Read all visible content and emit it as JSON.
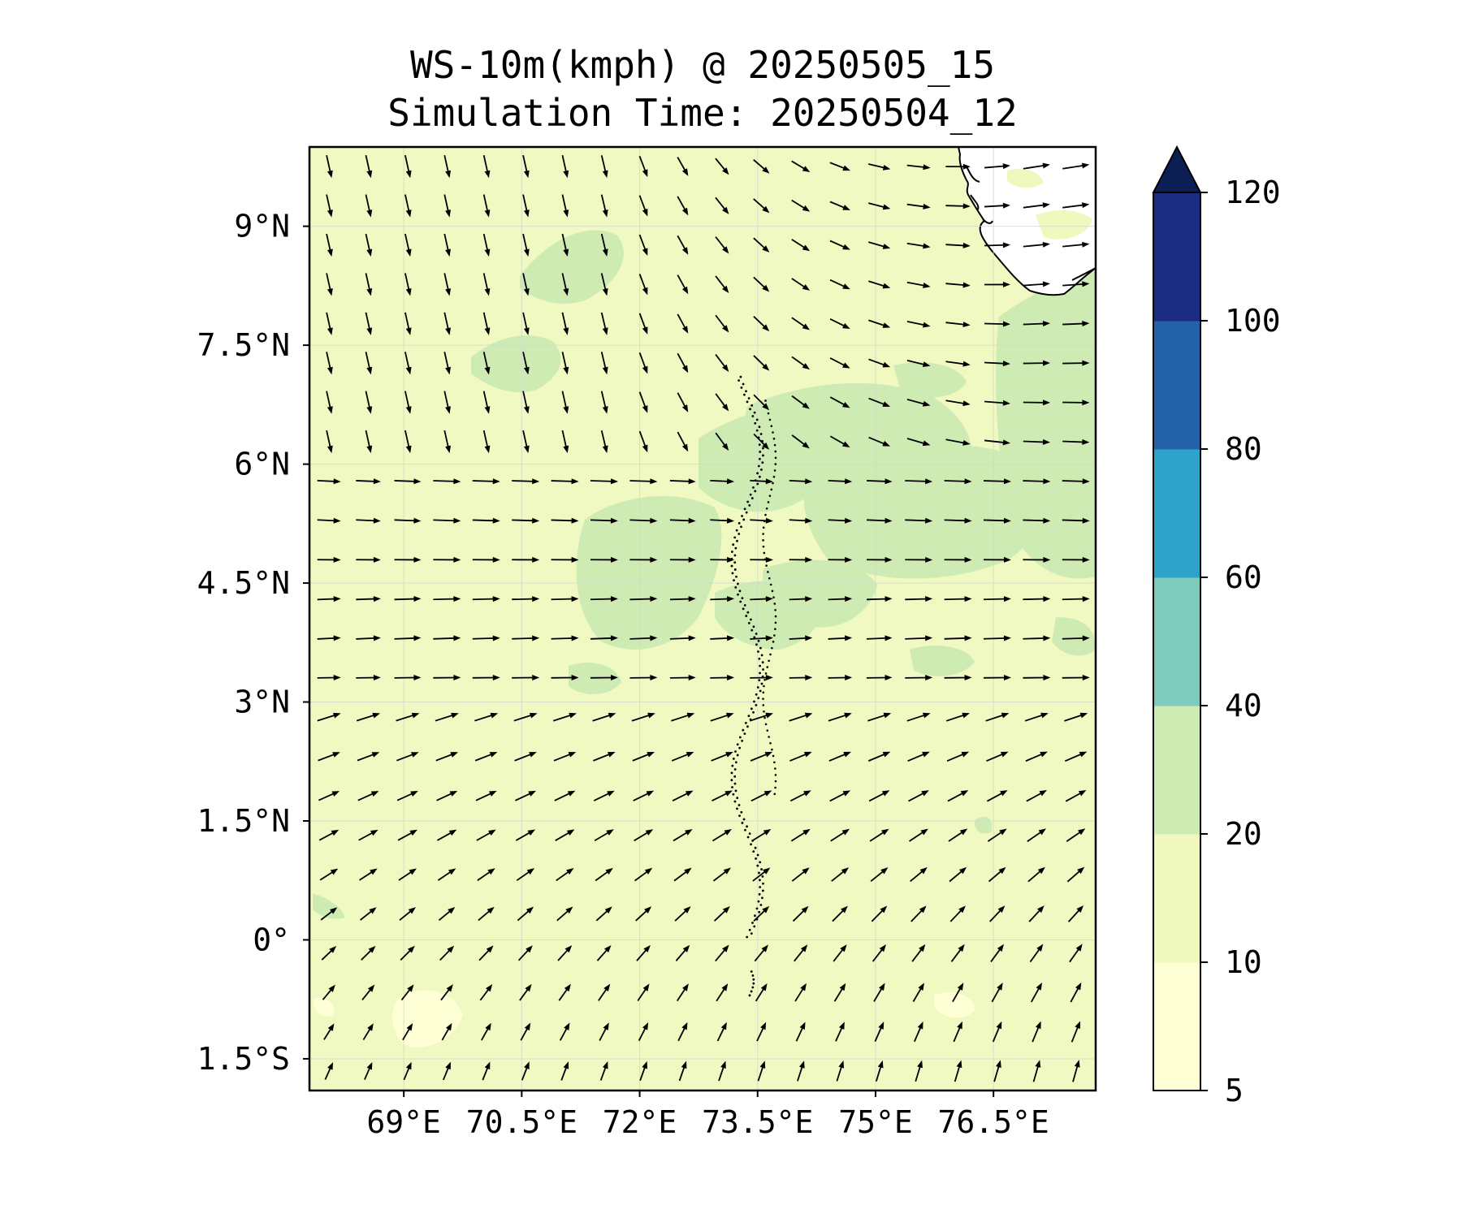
{
  "title": {
    "line1": "WS-10m(kmph) @ 20250505_15",
    "line2": "Simulation Time: 20250504_12"
  },
  "map": {
    "lon_range": [
      67.8,
      77.8
    ],
    "lat_range": [
      -1.9,
      10.0
    ],
    "x_ticks": [
      {
        "value": 69.0,
        "label": "69°E"
      },
      {
        "value": 70.5,
        "label": "70.5°E"
      },
      {
        "value": 72.0,
        "label": "72°E"
      },
      {
        "value": 73.5,
        "label": "73.5°E"
      },
      {
        "value": 75.0,
        "label": "75°E"
      },
      {
        "value": 76.5,
        "label": "76.5°E"
      }
    ],
    "y_ticks": [
      {
        "value": 9.0,
        "label": "9°N"
      },
      {
        "value": 7.5,
        "label": "7.5°N"
      },
      {
        "value": 6.0,
        "label": "6°N"
      },
      {
        "value": 4.5,
        "label": "4.5°N"
      },
      {
        "value": 3.0,
        "label": "3°N"
      },
      {
        "value": 1.5,
        "label": "1.5°N"
      },
      {
        "value": 0.0,
        "label": "0°"
      },
      {
        "value": -1.5,
        "label": "1.5°S"
      }
    ],
    "gridlines": true,
    "background_color": "#f0f9c1",
    "land": "Sri Lanka / south India coast at top-right",
    "islands": "Maldives atolls (dotted outlines) along 73.0–73.7°E"
  },
  "colorbar": {
    "levels": [
      5,
      10,
      20,
      40,
      60,
      80,
      100,
      120
    ],
    "labels": [
      "5",
      "10",
      "20",
      "40",
      "60",
      "80",
      "100",
      "120"
    ],
    "colors": [
      "#ffffd6",
      "#eff8bd",
      "#cfebb4",
      "#7ecbbc",
      "#2fa2c9",
      "#2361a9",
      "#1c2c82"
    ],
    "extend_color": "#0c1f55",
    "extend": "max"
  },
  "wind_field": {
    "description_key": "10 m wind vectors",
    "regimes": [
      {
        "lat_min": 6.0,
        "lat_max": 10.0,
        "lon_min": 67.8,
        "lon_max": 73.0,
        "direction": "south-southeast",
        "speed": "moderate"
      },
      {
        "lat_min": 3.0,
        "lat_max": 6.0,
        "lon_min": 67.8,
        "lon_max": 77.8,
        "direction": "east",
        "speed": "strong"
      },
      {
        "lat_min": -1.9,
        "lat_max": 3.0,
        "lon_min": 67.8,
        "lon_max": 77.8,
        "direction": "northeast",
        "speed": "moderate"
      }
    ]
  }
}
